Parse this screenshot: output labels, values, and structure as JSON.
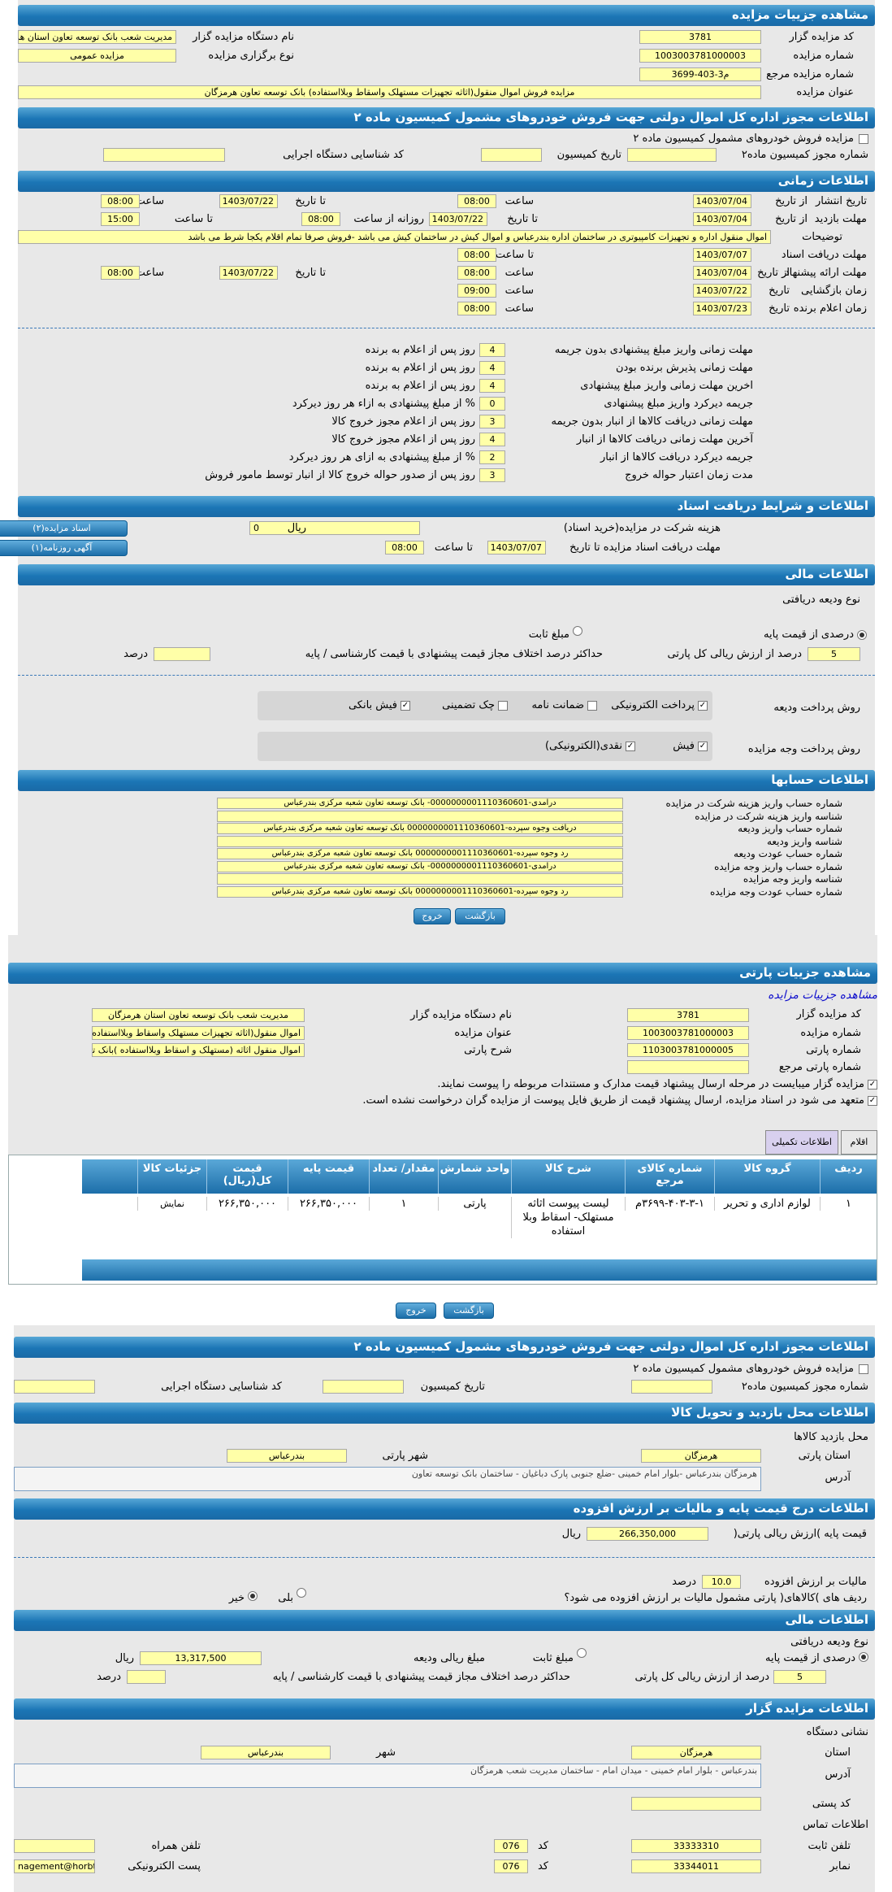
{
  "s1": {
    "title": "مشاهده جزییات مزایده",
    "auctioneer_code_label": "کد مزایده گزار",
    "auctioneer_code": "3781",
    "device_name_label": "نام دستگاه مزایده گزار",
    "device_name": "مدیریت شعب بانک توسعه تعاون استان هرمزگان",
    "auction_no_label": "شماره مزایده",
    "auction_no": "1003003781000003",
    "type_label": "نوع برگزاری مزایده",
    "type": "مزایده عمومی",
    "ref_no_label": "شماره مزایده مرجع",
    "ref_no": "م3-403-3699",
    "subject_label": "عنوان مزایده",
    "subject": "مزایده فروش اموال منقول(اثاثه تجهیزات مستهلک واسقاط وبلااستفاده) بانک توسعه تعاون هرمزگان"
  },
  "s2": {
    "title": "اطلاعات مجوز اداره کل اموال دولتی جهت فروش خودروهای مشمول کمیسیون ماده ۲",
    "cars_label": "مزایده فروش خودروهای مشمول کمیسیون ماده ۲",
    "permit_label": "شماره مجوز کمیسیون ماده۲",
    "date_label": "تاریخ کمیسیون",
    "exec_code_label": "کد شناسایی دستگاه اجرایی"
  },
  "s3": {
    "title": "اطلاعات زمانی",
    "publish_label": "تاریخ انتشار",
    "from": "از تاریخ",
    "to": "تا تاریخ",
    "time": "ساعت",
    "to_time": "تا ساعت",
    "daily_from": "روزانه از ساعت",
    "publish_from": "1403/07/04",
    "publish_from_time": "08:00",
    "publish_to": "1403/07/22",
    "publish_to_time": "08:00",
    "visit_label": "مهلت بازدید",
    "visit_from": "1403/07/04",
    "visit_to": "1403/07/22",
    "visit_daily": "08:00",
    "visit_to_time": "15:00",
    "desc_label": "توضیحات",
    "desc": "اموال منقول اداره و تجهیزات کامپیوتری در ساختمان اداره بندرعباس و اموال کیش در ساختمان کیش می باشد -فروش صرفا تمام اقلام یکجا شرط می باشد",
    "docs_label": "مهلت دریافت اسناد",
    "docs_to": "1403/07/07",
    "docs_time": "08:00",
    "offer_label": "مهلت ارائه پیشنهاد",
    "offer_from": "1403/07/04",
    "offer_from_time": "08:00",
    "offer_to": "1403/07/22",
    "offer_to_time": "08:00",
    "open_label": "زمان بازگشایی",
    "date": "تاریخ",
    "open_date": "1403/07/22",
    "open_time": "09:00",
    "winner_label": "زمان اعلام برنده",
    "winner_date": "1403/07/23",
    "winner_time": "08:00"
  },
  "rules": [
    {
      "label": "مهلت زمانی واریز مبلغ پیشنهادی بدون جریمه",
      "value": "4",
      "unit": "روز پس از اعلام به برنده"
    },
    {
      "label": "مهلت زمانی پذیرش برنده بودن",
      "value": "4",
      "unit": "روز پس از اعلام به برنده"
    },
    {
      "label": "اخرین مهلت زمانی واریز مبلغ پیشنهادی",
      "value": "4",
      "unit": "روز پس از اعلام به برنده"
    },
    {
      "label": "جریمه دیرکرد واریز مبلغ پیشنهادی",
      "value": "0",
      "unit": "% از مبلغ پیشنهادی به ازاء هر روز دیرکرد"
    },
    {
      "label": "مهلت زمانی دریافت کالاها از انبار بدون جریمه",
      "value": "3",
      "unit": "روز پس از اعلام مجوز خروج کالا"
    },
    {
      "label": "آخرین مهلت زمانی دریافت کالاها از انبار",
      "value": "4",
      "unit": "روز پس از اعلام مجوز خروج کالا"
    },
    {
      "label": "جریمه دیرکرد دریافت کالاها از انبار",
      "value": "2",
      "unit": "% از مبلغ پیشنهادی به ازای هر روز دیرکرد"
    },
    {
      "label": "مدت زمان اعتبار حواله خروج",
      "value": "3",
      "unit": "روز پس از صدور حواله خروج کالا از انبار توسط مامور فروش"
    }
  ],
  "s4": {
    "title": "اطلاعات و شرایط دریافت اسناد",
    "fee_label": "هزینه شرکت در مزایده(خرید اسناد)",
    "fee": "0",
    "fee_unit": "ریال",
    "deadline_label": "مهلت دریافت اسناد مزایده تا تاریخ",
    "deadline": "1403/07/07",
    "deadline_time_label": "تا ساعت",
    "deadline_time": "08:00",
    "btn_docs": "اسناد مزایده(۲)",
    "btn_ad": "آگهی روزنامه(۱)"
  },
  "s5": {
    "title": "اطلاعات مالی",
    "deposit_type": "نوع ودیعه دریافتی",
    "percent_opt": "درصدی از قیمت پایه",
    "fixed_opt": "مبلغ ثابت",
    "percent_value": "5",
    "percent_unit": "درصد از ارزش ریالی کل پارتی",
    "max_diff_label": "حداکثر درصد اختلاف مجاز قیمت پیشنهادی با قیمت کارشناسی / پایه",
    "max_diff_unit": "درصد",
    "pay_method_label": "روش پرداخت ودیعه",
    "pay_opts": [
      "پرداخت الکترونیکی",
      "ضمانت نامه",
      "چک تضمینی",
      "فیش بانکی"
    ],
    "auction_pay_label": "روش پرداخت وجه مزایده",
    "auction_pay_opts": [
      "فیش",
      "نقدی(الکترونیکی)"
    ]
  },
  "s6": {
    "title": "اطلاعات حسابها",
    "rows": [
      {
        "label": "شماره حساب واریز هزینه شرکت در مزایده",
        "value": "درآمدی-0000000001110360601- بانک توسعه تعاون شعبه مرکزی بندرعباس"
      },
      {
        "label": "شناسه واریز هزینه شرکت در مزایده",
        "value": ""
      },
      {
        "label": "شماره حساب واریز ودیعه",
        "value": "دریافت وجوه سپرده-0000000001110360601 بانک توسعه تعاون شعبه مرکزی بندرعباس"
      },
      {
        "label": "شناسه واریز ودیعه",
        "value": ""
      },
      {
        "label": "شماره حساب عودت ودیعه",
        "value": "رد وجوه سپرده-0000000001110360601 بانک توسعه تعاون شعبه مرکزی بندرعباس"
      },
      {
        "label": "شماره حساب واریز وجه مزایده",
        "value": "درآمدی-0000000001110360601- بانک توسعه تعاون شعبه مرکزی بندرعباس"
      },
      {
        "label": "شناسه واریز وجه مزایده",
        "value": ""
      },
      {
        "label": "شماره حساب عودت وجه مزایده",
        "value": "رد وجوه سپرده-0000000001110360601 بانک توسعه تعاون شعبه مرکزی بندرعباس"
      }
    ],
    "back": "بازگشت",
    "exit": "خروج"
  },
  "s7": {
    "title": "مشاهده جزییات پارتی",
    "link": "مشاهده جزییات مزایده",
    "auctioneer_code_label": "کد مزایده گزار",
    "auctioneer_code": "3781",
    "device_label": "نام دستگاه مزایده گزار",
    "device": "مدیریت شعب بانک توسعه تعاون استان هرمزگان",
    "auction_no_label": "شماره مزایده",
    "auction_no": "1003003781000003",
    "subject_label": "عنوان مزایده",
    "subject": "اموال منقول(اثاثه تجهیزات مستهلک واسقاط وبلااستفاده) بانک توسعه",
    "party_no_label": "شماره پارتی",
    "party_no": "1103003781000005",
    "party_desc_label": "شرح پارتی",
    "party_desc": "اموال منقول اثاثه (مستهلک و اسقاط وبلااستفاده )بانک توسعه تعاون",
    "party_ref_label": "شماره پارتی مرجع",
    "party_ref": "",
    "check1": "مزایده گزار میبایست در مرحله ارسال پیشنهاد قیمت مدارک و مستندات مربوطه را پیوست نمایند.",
    "check2": "متعهد می شود در اسناد مزایده، ارسال پیشنهاد قیمت از طریق فایل پیوست از مزایده گران درخواست نشده است.",
    "tab_items": "اقلام پارتی",
    "tab_extra": "اطلاعات تکمیلی",
    "cols": [
      "ردیف",
      "گروه کالا",
      "شماره کالای مرجع",
      "شرح کالا",
      "واحد شمارش",
      "مقدار/ تعداد",
      "قیمت پایه",
      "قیمت کل(ریال)",
      "جزئیات کالا"
    ],
    "row": [
      "۱",
      "لوازم اداری و تحریر",
      "۳۶۹۹-۴۰۳-۳-۱م",
      "لیست پیوست اثاثه مستهلک- اسقاط وبلا استفاده",
      "پارتی",
      "۱",
      "۲۶۶,۳۵۰,۰۰۰",
      "۲۶۶,۳۵۰,۰۰۰",
      "نمایش"
    ],
    "back": "بازگشت",
    "exit": "خروج"
  },
  "s8": {
    "title": "اطلاعات مجوز اداره کل اموال دولتی جهت فروش خودروهای مشمول کمیسیون ماده ۲",
    "cars_label": "مزایده فروش خودروهای مشمول کمیسیون ماده ۲",
    "permit_label": "شماره مجوز کمیسیون ماده۲",
    "date_label": "تاریخ کمیسیون",
    "exec_code_label": "کد شناسایی دستگاه اجرایی"
  },
  "s9": {
    "title": "اطلاعات محل بازدید و تحویل کالا",
    "place_label": "محل بازدید کالاها",
    "province_label": "استان پارتی",
    "province": "هرمزگان",
    "city_label": "شهر پارتی",
    "city": "بندرعباس",
    "address_label": "آدرس",
    "address": "هرمزگان بندرعباس -بلوار امام خمینی -ضلع جنوبی پارک دباغیان - ساختمان بانک توسعه تعاون"
  },
  "s10": {
    "title": "اطلاعات درج قیمت پایه و مالیات بر ارزش افزوده",
    "base_label": "قیمت پایه )ارزش ریالی پارتی(",
    "base": "266,350,000",
    "base_unit": "ریال",
    "vat_label": "مالیات بر ارزش افزوده",
    "vat": "10.0",
    "vat_unit": "درصد",
    "vat_q": "ردیف های )کالاهای( پارتی مشمول مالیات بر ارزش افزوده می شود؟",
    "yes": "بلی",
    "no": "خیر"
  },
  "s11": {
    "title": "اطلاعات مالی",
    "deposit_type": "نوع ودیعه دریافتی",
    "percent_opt": "درصدی از قیمت پایه",
    "fixed_opt": "مبلغ ثابت",
    "amount_label": "مبلغ ریالی ودیعه",
    "amount": "13,317,500",
    "amount_unit": "ریال",
    "percent_value": "5",
    "percent_unit": "درصد از ارزش ریالی کل پارتی",
    "max_diff_label": "حداکثر درصد اختلاف مجاز قیمت پیشنهادی با قیمت کارشناسی / پایه",
    "max_diff_unit": "درصد"
  },
  "s12": {
    "title": "اطلاعات مزایده گزار",
    "addr_title": "نشانی دستگاه",
    "province_label": "استان",
    "province": "هرمزگان",
    "city_label": "شهر",
    "city": "بندرعباس",
    "address_label": "آدرس",
    "address": "بندرعباس - بلوار امام خمینی - میدان امام - ساختمان مدیریت شعب هرمزگان",
    "postal_label": "کد پستی",
    "postal": "",
    "contact_title": "اطلاعات تماس",
    "phone_label": "تلفن ثابت",
    "phone": "33333310",
    "code_label": "کد",
    "phone_code": "076",
    "mobile_label": "تلفن همراه",
    "mobile": "",
    "fax_label": "نمابر",
    "fax": "33344011",
    "fax_code": "076",
    "email_label": "پست الکترونیکی",
    "email": "nagement@horbt"
  }
}
